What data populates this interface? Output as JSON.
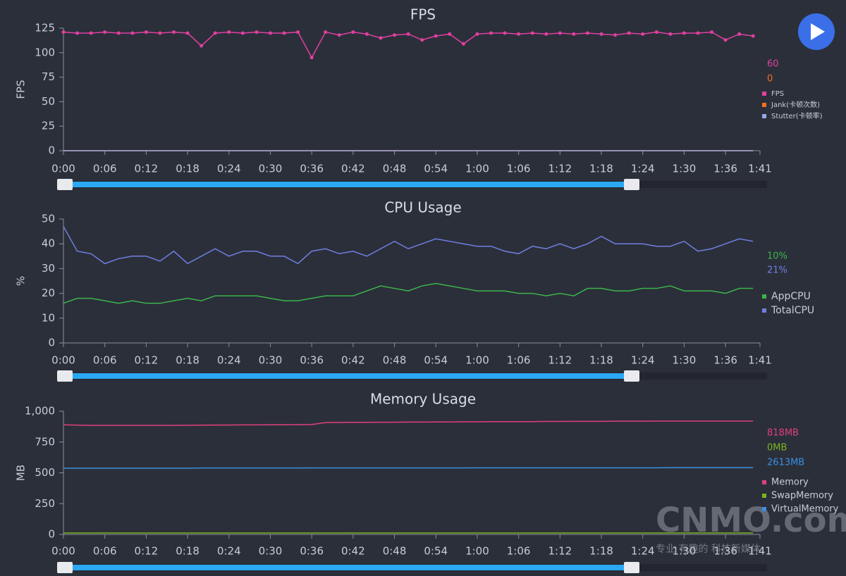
{
  "chart_data": [
    {
      "type": "line",
      "title": "FPS",
      "ylabel": "FPS",
      "markers": true,
      "x": [
        0,
        2,
        4,
        6,
        8,
        10,
        12,
        14,
        16,
        18,
        20,
        22,
        24,
        26,
        28,
        30,
        32,
        34,
        36,
        38,
        40,
        42,
        44,
        46,
        48,
        50,
        52,
        54,
        56,
        58,
        60,
        62,
        64,
        66,
        68,
        70,
        72,
        74,
        76,
        78,
        80,
        82,
        84,
        86,
        88,
        90,
        92,
        94,
        96,
        98,
        100
      ],
      "xlim": [
        0,
        101
      ],
      "xticks": [
        {
          "value": 0,
          "label": "0:00"
        },
        {
          "value": 6,
          "label": "0:06"
        },
        {
          "value": 12,
          "label": "0:12"
        },
        {
          "value": 18,
          "label": "0:18"
        },
        {
          "value": 24,
          "label": "0:24"
        },
        {
          "value": 30,
          "label": "0:30"
        },
        {
          "value": 36,
          "label": "0:36"
        },
        {
          "value": 42,
          "label": "0:42"
        },
        {
          "value": 48,
          "label": "0:48"
        },
        {
          "value": 54,
          "label": "0:54"
        },
        {
          "value": 60,
          "label": "1:00"
        },
        {
          "value": 66,
          "label": "1:06"
        },
        {
          "value": 72,
          "label": "1:12"
        },
        {
          "value": 78,
          "label": "1:18"
        },
        {
          "value": 84,
          "label": "1:24"
        },
        {
          "value": 90,
          "label": "1:30"
        },
        {
          "value": 96,
          "label": "1:36"
        },
        {
          "value": 101,
          "label": "1:41"
        }
      ],
      "ylim": [
        0,
        125
      ],
      "yticks": [
        0,
        25,
        50,
        75,
        100,
        125
      ],
      "series": [
        {
          "name": "FPS",
          "color": "#e040a0",
          "current": "60",
          "values": [
            121,
            120,
            120,
            121,
            120,
            120,
            121,
            120,
            121,
            120,
            107,
            120,
            121,
            120,
            121,
            120,
            120,
            121,
            95,
            121,
            118,
            121,
            119,
            115,
            118,
            119,
            113,
            117,
            119,
            109,
            119,
            120,
            120,
            119,
            120,
            119,
            120,
            119,
            120,
            119,
            118,
            120,
            119,
            121,
            119,
            120,
            120,
            121,
            113,
            119,
            117
          ]
        },
        {
          "name": "Jank(卡顿次数)",
          "color": "#f07020",
          "current": "0",
          "values": [
            0,
            0,
            0,
            0,
            0,
            0,
            0,
            0,
            0,
            0,
            0,
            0,
            0,
            0,
            0,
            0,
            0,
            0,
            0,
            0,
            0,
            0,
            0,
            0,
            0,
            0,
            0,
            0,
            0,
            0,
            0,
            0,
            0,
            0,
            0,
            0,
            0,
            0,
            0,
            0,
            0,
            0,
            0,
            0,
            0,
            0,
            0,
            0,
            0,
            0,
            0
          ]
        },
        {
          "name": "Stutter(卡顿率)",
          "color": "#9aa6e8",
          "values": [
            0,
            0,
            0,
            0,
            0,
            0,
            0,
            0,
            0,
            0,
            0,
            0,
            0,
            0,
            0,
            0,
            0,
            0,
            0,
            0,
            0,
            0,
            0,
            0,
            0,
            0,
            0,
            0,
            0,
            0,
            0,
            0,
            0,
            0,
            0,
            0,
            0,
            0,
            0,
            0,
            0,
            0,
            0,
            0,
            0,
            0,
            0,
            0,
            0,
            0,
            0
          ]
        }
      ]
    },
    {
      "type": "line",
      "title": "CPU Usage",
      "ylabel": "%",
      "x": [
        0,
        2,
        4,
        6,
        8,
        10,
        12,
        14,
        16,
        18,
        20,
        22,
        24,
        26,
        28,
        30,
        32,
        34,
        36,
        38,
        40,
        42,
        44,
        46,
        48,
        50,
        52,
        54,
        56,
        58,
        60,
        62,
        64,
        66,
        68,
        70,
        72,
        74,
        76,
        78,
        80,
        82,
        84,
        86,
        88,
        90,
        92,
        94,
        96,
        98,
        100
      ],
      "xlim": [
        0,
        101
      ],
      "xticks": [
        {
          "value": 0,
          "label": "0:00"
        },
        {
          "value": 6,
          "label": "0:06"
        },
        {
          "value": 12,
          "label": "0:12"
        },
        {
          "value": 18,
          "label": "0:18"
        },
        {
          "value": 24,
          "label": "0:24"
        },
        {
          "value": 30,
          "label": "0:30"
        },
        {
          "value": 36,
          "label": "0:36"
        },
        {
          "value": 42,
          "label": "0:42"
        },
        {
          "value": 48,
          "label": "0:48"
        },
        {
          "value": 54,
          "label": "0:54"
        },
        {
          "value": 60,
          "label": "1:00"
        },
        {
          "value": 66,
          "label": "1:06"
        },
        {
          "value": 72,
          "label": "1:12"
        },
        {
          "value": 78,
          "label": "1:18"
        },
        {
          "value": 84,
          "label": "1:24"
        },
        {
          "value": 90,
          "label": "1:30"
        },
        {
          "value": 96,
          "label": "1:36"
        },
        {
          "value": 101,
          "label": "1:41"
        }
      ],
      "ylim": [
        0,
        50
      ],
      "yticks": [
        0,
        10,
        20,
        30,
        40,
        50
      ],
      "series": [
        {
          "name": "AppCPU",
          "color": "#3bb54a",
          "current": "10%",
          "values": [
            16,
            18,
            18,
            17,
            16,
            17,
            16,
            16,
            17,
            18,
            17,
            19,
            19,
            19,
            19,
            18,
            17,
            17,
            18,
            19,
            19,
            19,
            21,
            23,
            22,
            21,
            23,
            24,
            23,
            22,
            21,
            21,
            21,
            20,
            20,
            19,
            20,
            19,
            22,
            22,
            21,
            21,
            22,
            22,
            23,
            21,
            21,
            21,
            20,
            22,
            22
          ]
        },
        {
          "name": "TotalCPU",
          "color": "#6f7fe0",
          "current": "21%",
          "values": [
            47,
            37,
            36,
            32,
            34,
            35,
            35,
            33,
            37,
            32,
            35,
            38,
            35,
            37,
            37,
            35,
            35,
            32,
            37,
            38,
            36,
            37,
            35,
            38,
            41,
            38,
            40,
            42,
            41,
            40,
            39,
            39,
            37,
            36,
            39,
            38,
            40,
            38,
            40,
            43,
            40,
            40,
            40,
            39,
            39,
            41,
            37,
            38,
            40,
            42,
            41
          ]
        }
      ]
    },
    {
      "type": "line",
      "title": "Memory Usage",
      "ylabel": "MB",
      "x": [
        0,
        2,
        4,
        6,
        8,
        10,
        12,
        14,
        16,
        18,
        20,
        22,
        24,
        26,
        28,
        30,
        32,
        34,
        36,
        38,
        40,
        42,
        44,
        46,
        48,
        50,
        52,
        54,
        56,
        58,
        60,
        62,
        64,
        66,
        68,
        70,
        72,
        74,
        76,
        78,
        80,
        82,
        84,
        86,
        88,
        90,
        92,
        94,
        96,
        98,
        100
      ],
      "xlim": [
        0,
        101
      ],
      "xticks": [
        {
          "value": 0,
          "label": "0:00"
        },
        {
          "value": 6,
          "label": "0:06"
        },
        {
          "value": 12,
          "label": "0:12"
        },
        {
          "value": 18,
          "label": "0:18"
        },
        {
          "value": 24,
          "label": "0:24"
        },
        {
          "value": 30,
          "label": "0:30"
        },
        {
          "value": 36,
          "label": "0:36"
        },
        {
          "value": 42,
          "label": "0:42"
        },
        {
          "value": 48,
          "label": "0:48"
        },
        {
          "value": 54,
          "label": "0:54"
        },
        {
          "value": 60,
          "label": "1:00"
        },
        {
          "value": 66,
          "label": "1:06"
        },
        {
          "value": 72,
          "label": "1:12"
        },
        {
          "value": 78,
          "label": "1:18"
        },
        {
          "value": 84,
          "label": "1:24"
        },
        {
          "value": 90,
          "label": "1:30"
        },
        {
          "value": 96,
          "label": "1:36"
        },
        {
          "value": 101,
          "label": "1:41"
        }
      ],
      "ylim": [
        0,
        1000
      ],
      "yticks": [
        0,
        250,
        500,
        750,
        {
          "value": 1000,
          "label": "1,000"
        }
      ],
      "series": [
        {
          "name": "Memory",
          "color": "#e0407a",
          "current": "818MB",
          "values": [
            890,
            887,
            885,
            885,
            885,
            885,
            885,
            885,
            885,
            886,
            887,
            888,
            888,
            889,
            889,
            890,
            890,
            891,
            892,
            908,
            909,
            910,
            910,
            911,
            911,
            912,
            912,
            913,
            913,
            914,
            914,
            915,
            915,
            916,
            916,
            917,
            917,
            918,
            918,
            918,
            919,
            919,
            919,
            920,
            920,
            920,
            920,
            920,
            920,
            920,
            920
          ]
        },
        {
          "name": "SwapMemory",
          "color": "#7ab51e",
          "current": "0MB",
          "values": [
            12,
            12,
            12,
            12,
            12,
            12,
            12,
            12,
            12,
            12,
            12,
            12,
            12,
            12,
            12,
            12,
            12,
            12,
            12,
            12,
            12,
            12,
            12,
            12,
            12,
            12,
            12,
            12,
            12,
            12,
            12,
            12,
            12,
            12,
            12,
            12,
            12,
            12,
            12,
            12,
            12,
            12,
            12,
            12,
            12,
            12,
            12,
            12,
            12,
            12,
            12
          ]
        },
        {
          "name": "VirtualMemory",
          "color": "#3a90e0",
          "current": "2613MB",
          "values": [
            538,
            538,
            538,
            538,
            538,
            538,
            538,
            538,
            538,
            538,
            539,
            539,
            539,
            539,
            539,
            539,
            539,
            539,
            540,
            540,
            540,
            540,
            540,
            540,
            540,
            540,
            540,
            540,
            540,
            540,
            541,
            541,
            541,
            541,
            541,
            541,
            541,
            541,
            541,
            541,
            541,
            541,
            541,
            541,
            542,
            542,
            542,
            542,
            542,
            542,
            542
          ]
        }
      ]
    }
  ],
  "watermark": {
    "brand": "CNMO.com",
    "tagline": "专业 有趣的 科技新媒体"
  }
}
